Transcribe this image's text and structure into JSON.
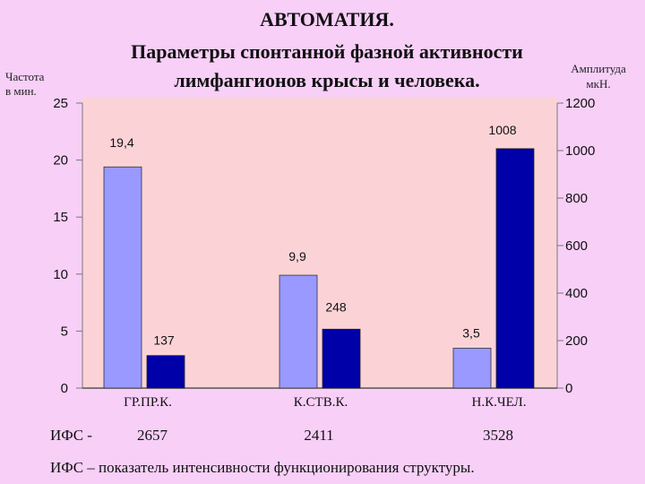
{
  "title_lines": [
    "АВТОМАТИЯ.",
    "Параметры спонтанной фазной активности",
    "лимфангионов крысы и человека."
  ],
  "left_axis_label": [
    "Частота",
    "в мин."
  ],
  "right_axis_label": [
    "Амплитуда",
    "мкН."
  ],
  "ifs": {
    "label": "ИФС -",
    "values": [
      "2657",
      "2411",
      "3528"
    ]
  },
  "footnote": "ИФС – показатель интенсивности функционирования структуры.",
  "colors": {
    "frequency_bar": "#9999ff",
    "amplitude_bar": "#0000a8",
    "background": "#f7cff7",
    "plot_background": "#fbd3d7"
  },
  "chart_data": {
    "type": "bar",
    "categories": [
      "ГР.ПР.К.",
      "К.СТВ.К.",
      "Н.К.ЧЕЛ."
    ],
    "series": [
      {
        "values": [
          19.4,
          9.9,
          3.5
        ],
        "labels": [
          "19,4",
          "9,9",
          "3,5"
        ],
        "axis": "left"
      },
      {
        "values": [
          137,
          248,
          1008
        ],
        "labels": [
          "137",
          "248",
          "1008"
        ],
        "axis": "right"
      }
    ],
    "left_axis": {
      "ylim": [
        0,
        25
      ],
      "ticks": [
        "0",
        "5",
        "10",
        "15",
        "20",
        "25"
      ]
    },
    "right_axis": {
      "ylim": [
        0,
        1200
      ],
      "ticks": [
        "0",
        "200",
        "400",
        "600",
        "800",
        "1000",
        "1200"
      ]
    },
    "grid": false
  }
}
